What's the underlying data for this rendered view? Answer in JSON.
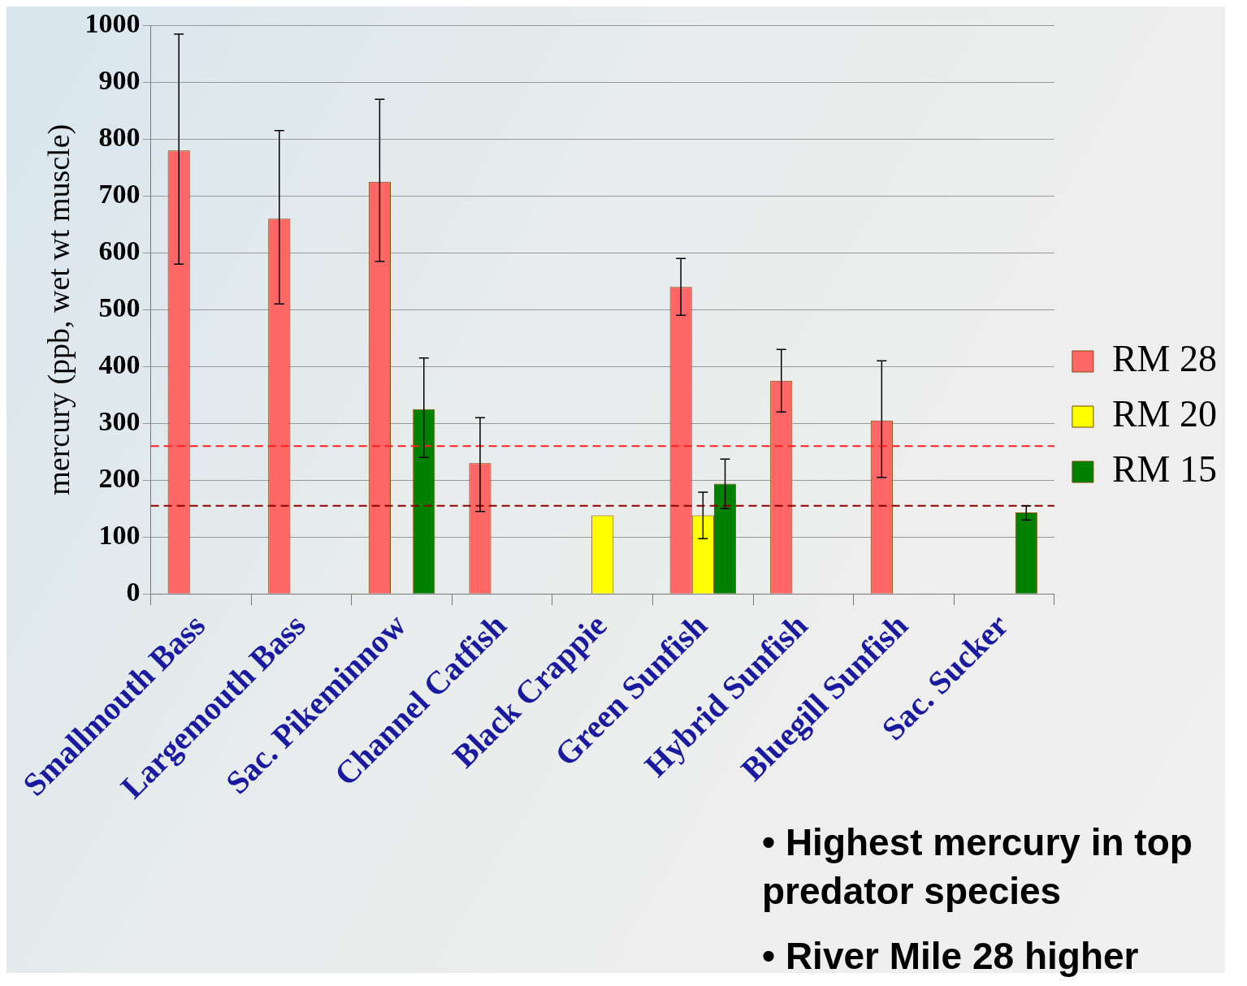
{
  "chart_data": {
    "type": "bar",
    "ylabel": "mercury (ppb, wet wt muscle)",
    "categories": [
      "Smallmouth Bass",
      "Largemouth Bass",
      "Sac. Pikeminnow",
      "Channel Catfish",
      "Black Crappie",
      "Green Sunfish",
      "Hybrid Sunfish",
      "Bluegill Sunfish",
      "Sac. Sucker"
    ],
    "series": [
      {
        "name": "RM 28",
        "color": "#ff6666",
        "values": [
          780,
          660,
          725,
          230,
          null,
          540,
          375,
          305,
          null
        ],
        "errors": [
          [
            580,
            985
          ],
          [
            510,
            815
          ],
          [
            585,
            870
          ],
          [
            145,
            310
          ],
          null,
          [
            490,
            590
          ],
          [
            320,
            430
          ],
          [
            205,
            410
          ],
          null
        ]
      },
      {
        "name": "RM 20",
        "color": "#ffff00",
        "values": [
          null,
          null,
          null,
          null,
          138,
          138,
          null,
          null,
          null
        ],
        "errors": [
          null,
          null,
          null,
          null,
          null,
          [
            97,
            179
          ],
          null,
          null,
          null
        ]
      },
      {
        "name": "RM 15",
        "color": "#008000",
        "values": [
          null,
          null,
          325,
          null,
          null,
          194,
          null,
          null,
          143
        ],
        "errors": [
          null,
          null,
          [
            240,
            415
          ],
          null,
          null,
          [
            150,
            237
          ],
          null,
          null,
          [
            130,
            155
          ]
        ]
      }
    ],
    "ylim": [
      0,
      1000
    ],
    "yticks": [
      0,
      100,
      200,
      300,
      400,
      500,
      600,
      700,
      800,
      900,
      {
        "value": 1000,
        "label": "1000"
      }
    ],
    "grid": "y",
    "legend": "right",
    "ref_lines": [
      {
        "axis": "y",
        "value": 260,
        "color": "#ff2020",
        "line_style": "dashed"
      },
      {
        "axis": "y",
        "value": 155,
        "color": "#8b0000",
        "line_style": "dashed"
      }
    ],
    "annotations": [
      "•  Highest mercury in top predator species",
      "•  River Mile 28 higher"
    ]
  }
}
